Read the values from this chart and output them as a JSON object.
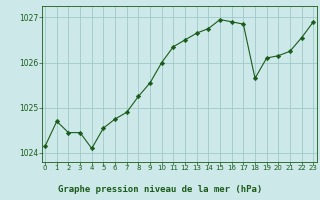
{
  "x": [
    0,
    1,
    2,
    3,
    4,
    5,
    6,
    7,
    8,
    9,
    10,
    11,
    12,
    13,
    14,
    15,
    16,
    17,
    18,
    19,
    20,
    21,
    22,
    23
  ],
  "y": [
    1024.15,
    1024.7,
    1024.45,
    1024.45,
    1024.1,
    1024.55,
    1024.75,
    1024.9,
    1025.25,
    1025.55,
    1026.0,
    1026.35,
    1026.5,
    1026.65,
    1026.75,
    1026.95,
    1026.9,
    1026.85,
    1025.65,
    1026.1,
    1026.15,
    1026.25,
    1026.55,
    1026.9
  ],
  "line_color": "#1a5c1a",
  "marker": "D",
  "marker_size": 2.2,
  "bg_color": "#cce8e8",
  "grid_color": "#a0c8c8",
  "xlabel": "Graphe pression niveau de la mer (hPa)",
  "xlabel_color": "#1a5c1a",
  "ylim": [
    1023.8,
    1027.25
  ],
  "yticks": [
    1024,
    1025,
    1026,
    1027
  ],
  "xticks": [
    0,
    1,
    2,
    3,
    4,
    5,
    6,
    7,
    8,
    9,
    10,
    11,
    12,
    13,
    14,
    15,
    16,
    17,
    18,
    19,
    20,
    21,
    22,
    23
  ]
}
